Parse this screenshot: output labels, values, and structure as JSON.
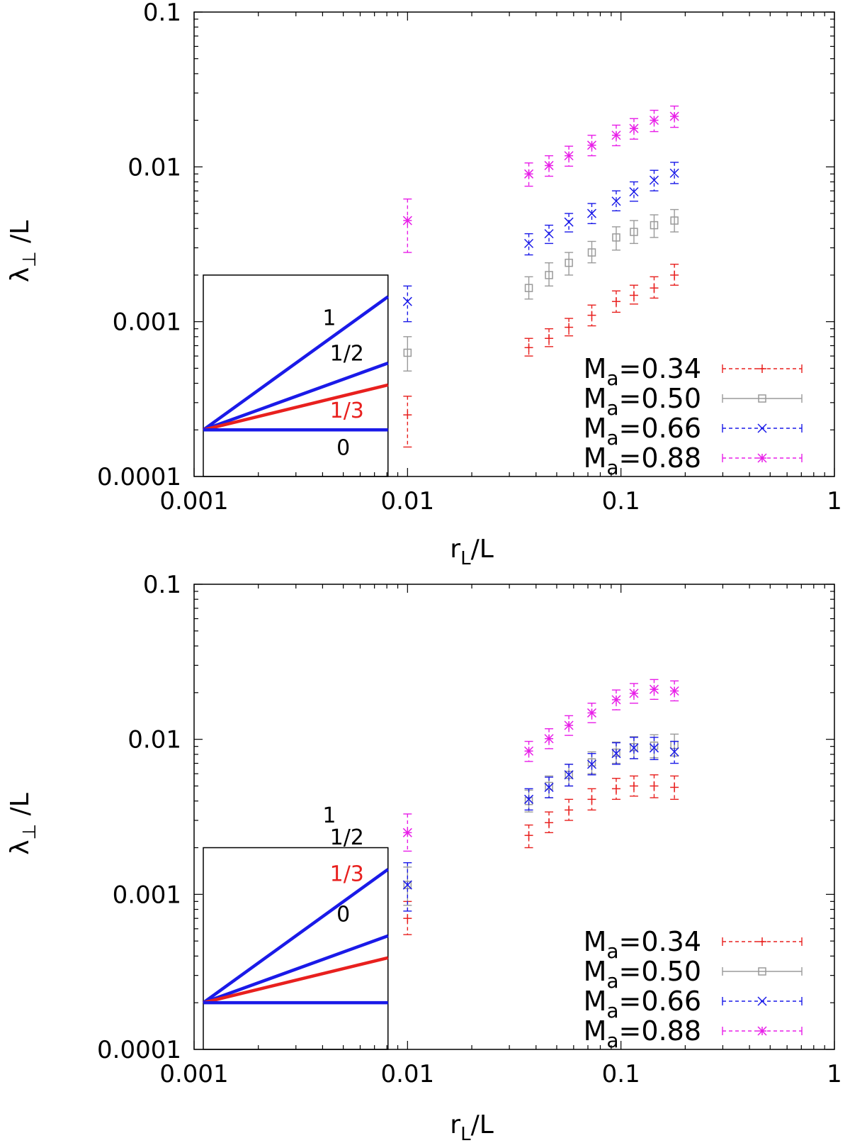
{
  "chart_data": [
    {
      "type": "scatter",
      "panel": "top",
      "xscale": "log",
      "yscale": "log",
      "xlim": [
        0.001,
        1
      ],
      "ylim": [
        0.0001,
        0.1
      ],
      "xlabel_main": "r",
      "xlabel_sub": "L",
      "xlabel_tail": "/L",
      "ylabel_main": "λ",
      "ylabel_sub": "⊥",
      "ylabel_tail": " /L",
      "xticks": [
        {
          "v": 0.001,
          "label": "0.001"
        },
        {
          "v": 0.01,
          "label": "0.01"
        },
        {
          "v": 0.1,
          "label": "0.1"
        },
        {
          "v": 1,
          "label": "1"
        }
      ],
      "yticks": [
        {
          "v": 0.0001,
          "label": "0.0001"
        },
        {
          "v": 0.001,
          "label": "0.001"
        },
        {
          "v": 0.01,
          "label": "0.01"
        },
        {
          "v": 0.1,
          "label": "0.1"
        }
      ],
      "legend_position": "bottom-right",
      "series": [
        {
          "name": "Ma=0.34",
          "legend_main": "M",
          "legend_sub": "a",
          "legend_tail": "=0.34",
          "color": "#e8201e",
          "marker": "plus",
          "dashed": true,
          "x": [
            0.01,
            0.037,
            0.046,
            0.057,
            0.073,
            0.095,
            0.115,
            0.143,
            0.178
          ],
          "y": [
            0.00025,
            0.00068,
            0.00078,
            0.00092,
            0.0011,
            0.00135,
            0.00148,
            0.00165,
            0.002
          ],
          "ylo": [
            0.000155,
            0.0006,
            0.00069,
            0.00081,
            0.00094,
            0.00115,
            0.0013,
            0.00142,
            0.00172
          ],
          "yhi": [
            0.00033,
            0.00078,
            0.0009,
            0.00105,
            0.00128,
            0.00158,
            0.00172,
            0.00195,
            0.00235
          ]
        },
        {
          "name": "Ma=0.50",
          "legend_main": "M",
          "legend_sub": "a",
          "legend_tail": "=0.50",
          "color": "#9a9a9a",
          "marker": "square",
          "dashed": false,
          "x": [
            0.01,
            0.037,
            0.046,
            0.057,
            0.073,
            0.095,
            0.115,
            0.143,
            0.178
          ],
          "y": [
            0.00063,
            0.00165,
            0.002,
            0.0024,
            0.0028,
            0.0035,
            0.0038,
            0.0042,
            0.0045
          ],
          "ylo": [
            0.00048,
            0.0014,
            0.0017,
            0.002,
            0.0024,
            0.0029,
            0.0032,
            0.0035,
            0.0038
          ],
          "yhi": [
            0.0008,
            0.00195,
            0.0024,
            0.0028,
            0.0033,
            0.0041,
            0.0045,
            0.0049,
            0.0053
          ]
        },
        {
          "name": "Ma=0.66",
          "legend_main": "M",
          "legend_sub": "a",
          "legend_tail": "=0.66",
          "color": "#1a1ae8",
          "marker": "cross",
          "dashed": true,
          "x": [
            0.01,
            0.037,
            0.046,
            0.057,
            0.073,
            0.095,
            0.115,
            0.143,
            0.178
          ],
          "y": [
            0.00135,
            0.0032,
            0.0037,
            0.0044,
            0.005,
            0.006,
            0.0069,
            0.0082,
            0.0091
          ],
          "ylo": [
            0.001,
            0.0027,
            0.0032,
            0.0038,
            0.0043,
            0.0052,
            0.006,
            0.007,
            0.0078
          ],
          "yhi": [
            0.0017,
            0.0037,
            0.0042,
            0.005,
            0.0058,
            0.007,
            0.008,
            0.0095,
            0.0107
          ]
        },
        {
          "name": "Ma=0.88",
          "legend_main": "M",
          "legend_sub": "a",
          "legend_tail": "=0.88",
          "color": "#e81ee8",
          "marker": "star",
          "dashed": true,
          "x": [
            0.01,
            0.037,
            0.046,
            0.057,
            0.073,
            0.095,
            0.115,
            0.143,
            0.178
          ],
          "y": [
            0.0045,
            0.009,
            0.0102,
            0.0118,
            0.0138,
            0.016,
            0.0177,
            0.02,
            0.0212
          ],
          "ylo": [
            0.0028,
            0.0075,
            0.0087,
            0.0101,
            0.0118,
            0.0137,
            0.0151,
            0.0169,
            0.018
          ],
          "yhi": [
            0.0062,
            0.0106,
            0.0118,
            0.0136,
            0.016,
            0.0186,
            0.0205,
            0.0232,
            0.0247
          ]
        }
      ],
      "inset": {
        "lines": [
          {
            "label": "1",
            "color": "#1a1ae8",
            "y_end": 0.00145
          },
          {
            "label": "1/2",
            "color": "#1a1ae8",
            "y_end": 0.00054
          },
          {
            "label": "1/3",
            "color": "#e8201e",
            "y_end": 0.00039
          },
          {
            "label": "0",
            "color": "#1a1ae8",
            "y_end": 0.0002
          }
        ],
        "y_start": 0.0002,
        "box_y_top": 0.002,
        "label_positions": [
          {
            "x": 0.0043,
            "y": 0.00095
          },
          {
            "x": 0.0052,
            "y": 0.00056
          },
          {
            "x": 0.0052,
            "y": 0.00024
          },
          {
            "x": 0.005,
            "y": 0.000138
          }
        ]
      }
    },
    {
      "type": "scatter",
      "panel": "bottom",
      "xscale": "log",
      "yscale": "log",
      "xlim": [
        0.001,
        1
      ],
      "ylim": [
        0.0001,
        0.1
      ],
      "xlabel_main": "r",
      "xlabel_sub": "L",
      "xlabel_tail": "/L",
      "ylabel_main": "λ",
      "ylabel_sub": "⊥",
      "ylabel_tail": " /L",
      "xticks": [
        {
          "v": 0.001,
          "label": "0.001"
        },
        {
          "v": 0.01,
          "label": "0.01"
        },
        {
          "v": 0.1,
          "label": "0.1"
        },
        {
          "v": 1,
          "label": "1"
        }
      ],
      "yticks": [
        {
          "v": 0.0001,
          "label": "0.0001"
        },
        {
          "v": 0.001,
          "label": "0.001"
        },
        {
          "v": 0.01,
          "label": "0.01"
        },
        {
          "v": 0.1,
          "label": "0.1"
        }
      ],
      "legend_position": "bottom-right",
      "series": [
        {
          "name": "Ma=0.34",
          "legend_main": "M",
          "legend_sub": "a",
          "legend_tail": "=0.34",
          "color": "#e8201e",
          "marker": "plus",
          "dashed": true,
          "x": [
            0.01,
            0.037,
            0.046,
            0.057,
            0.073,
            0.095,
            0.115,
            0.143,
            0.178
          ],
          "y": [
            0.0007,
            0.0024,
            0.0029,
            0.0035,
            0.0041,
            0.0048,
            0.005,
            0.005,
            0.0049
          ],
          "ylo": [
            0.00055,
            0.002,
            0.0025,
            0.003,
            0.0035,
            0.0041,
            0.0043,
            0.0042,
            0.0041
          ],
          "yhi": [
            0.0009,
            0.0028,
            0.0034,
            0.0041,
            0.0048,
            0.0056,
            0.0058,
            0.0059,
            0.0058
          ]
        },
        {
          "name": "Ma=0.50",
          "legend_main": "M",
          "legend_sub": "a",
          "legend_tail": "=0.50",
          "color": "#9a9a9a",
          "marker": "square",
          "dashed": false,
          "x": [
            0.01,
            0.037,
            0.046,
            0.057,
            0.073,
            0.095,
            0.115,
            0.143,
            0.178
          ],
          "y": [
            0.00115,
            0.004,
            0.005,
            0.0059,
            0.0071,
            0.0082,
            0.0089,
            0.0091,
            0.0092
          ],
          "ylo": [
            0.00085,
            0.0034,
            0.0042,
            0.005,
            0.006,
            0.007,
            0.0075,
            0.0076,
            0.0078
          ],
          "yhi": [
            0.0015,
            0.0047,
            0.0058,
            0.0069,
            0.0083,
            0.0096,
            0.0104,
            0.0107,
            0.0108
          ]
        },
        {
          "name": "Ma=0.66",
          "legend_main": "M",
          "legend_sub": "a",
          "legend_tail": "=0.66",
          "color": "#1a1ae8",
          "marker": "cross",
          "dashed": true,
          "x": [
            0.01,
            0.037,
            0.046,
            0.057,
            0.073,
            0.095,
            0.115,
            0.143,
            0.178
          ],
          "y": [
            0.00115,
            0.0041,
            0.0049,
            0.0059,
            0.0069,
            0.0081,
            0.0088,
            0.0088,
            0.0083
          ],
          "ylo": [
            0.00078,
            0.0035,
            0.0042,
            0.005,
            0.0059,
            0.0069,
            0.0075,
            0.0074,
            0.007
          ],
          "yhi": [
            0.0016,
            0.0048,
            0.0057,
            0.0069,
            0.0081,
            0.0095,
            0.0103,
            0.0103,
            0.0097
          ]
        },
        {
          "name": "Ma=0.88",
          "legend_main": "M",
          "legend_sub": "a",
          "legend_tail": "=0.88",
          "color": "#e81ee8",
          "marker": "star",
          "dashed": true,
          "x": [
            0.01,
            0.037,
            0.046,
            0.057,
            0.073,
            0.095,
            0.115,
            0.143,
            0.178
          ],
          "y": [
            0.0025,
            0.0084,
            0.0101,
            0.0123,
            0.0148,
            0.018,
            0.0198,
            0.021,
            0.0205
          ],
          "ylo": [
            0.0019,
            0.0072,
            0.0087,
            0.0106,
            0.0128,
            0.0155,
            0.0171,
            0.0181,
            0.0177
          ],
          "yhi": [
            0.0033,
            0.0097,
            0.0117,
            0.0142,
            0.0171,
            0.0208,
            0.0229,
            0.0243,
            0.0238
          ]
        }
      ],
      "inset": {
        "lines": [
          {
            "label": "1",
            "color": "#1a1ae8",
            "y_end": 0.00145
          },
          {
            "label": "1/2",
            "color": "#1a1ae8",
            "y_end": 0.00054
          },
          {
            "label": "1/3",
            "color": "#e8201e",
            "y_end": 0.00039
          },
          {
            "label": "0",
            "color": "#1a1ae8",
            "y_end": 0.0002
          }
        ],
        "y_start": 0.0002,
        "box_y_top": 0.002,
        "label_positions": [
          {
            "x": 0.0043,
            "y": 0.0029
          },
          {
            "x": 0.0052,
            "y": 0.0021
          },
          {
            "x": 0.0052,
            "y": 0.00122
          },
          {
            "x": 0.005,
            "y": 0.00067
          }
        ]
      }
    }
  ]
}
